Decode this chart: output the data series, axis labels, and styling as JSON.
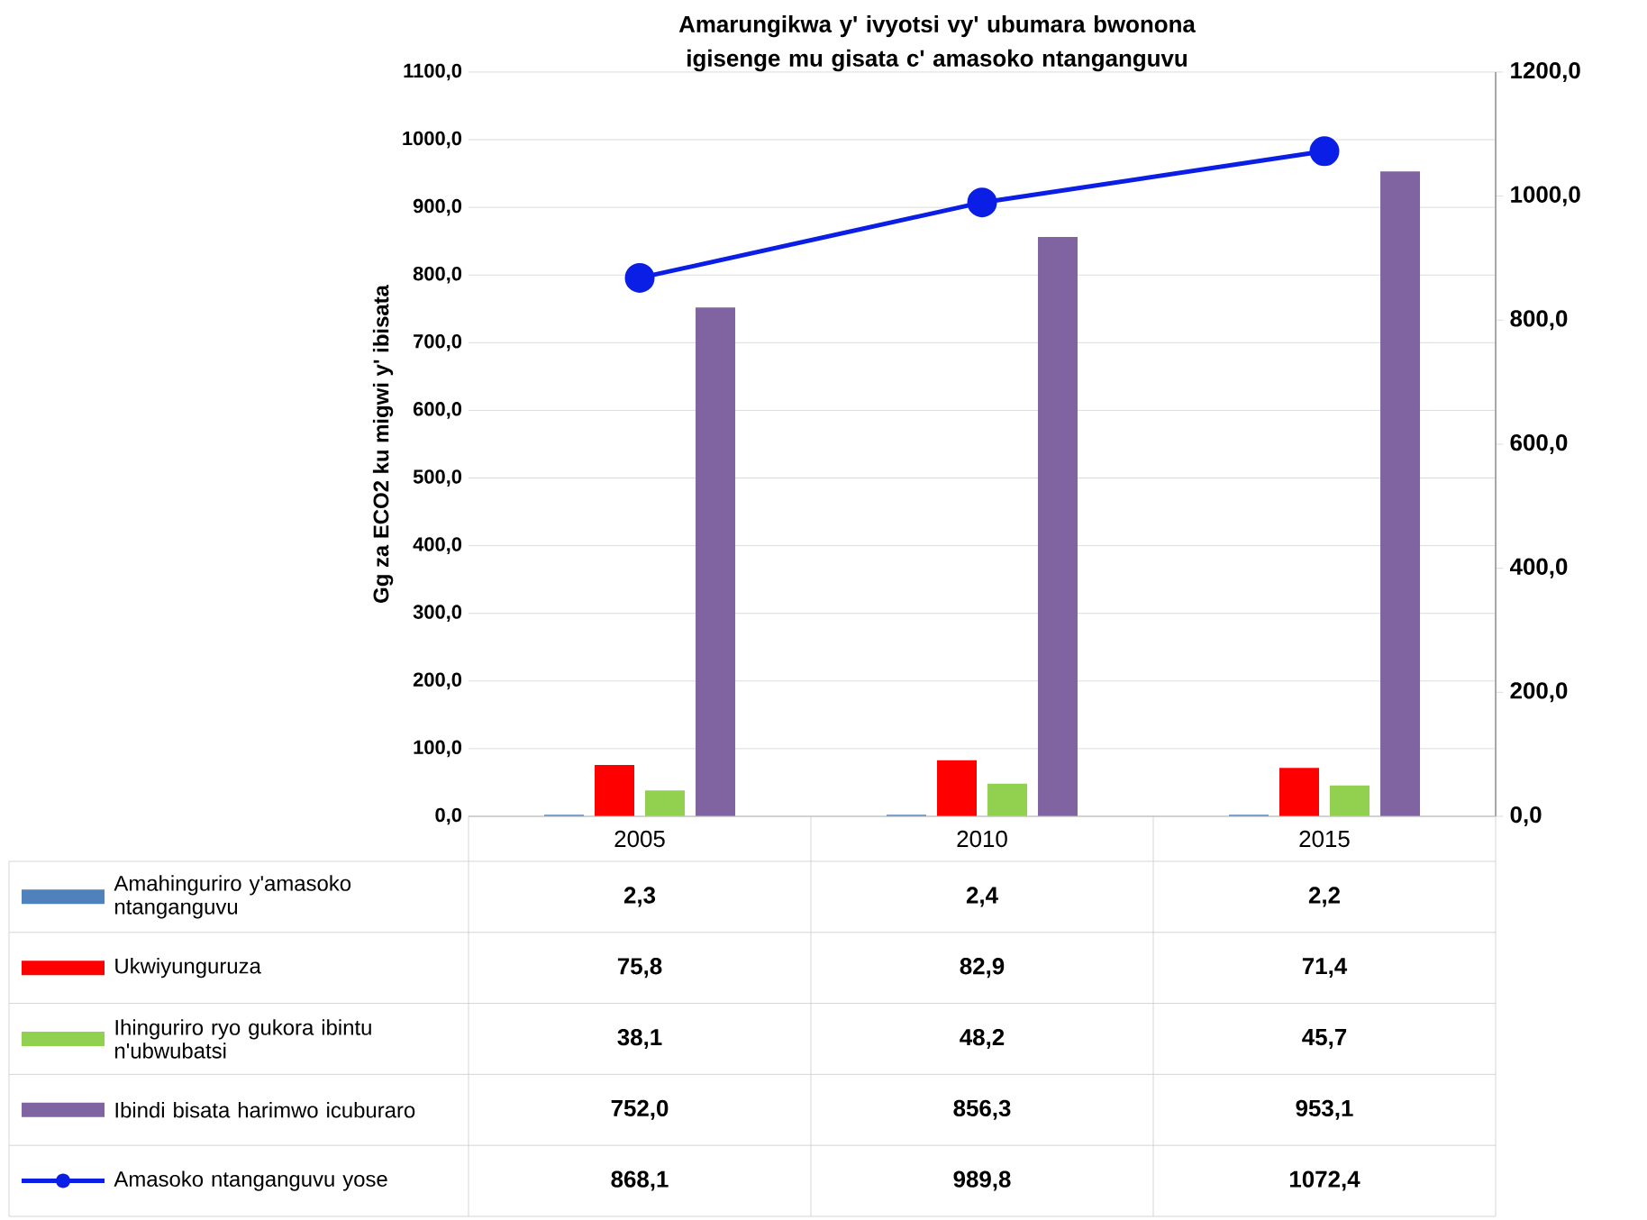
{
  "chart_data": {
    "type": "bar",
    "title": "Amarungikwa y' ivyotsi vy' ubumara bwonona igisenge mu gisata c' amasoko ntanganguvu",
    "ylabel": "Gg za ECO2  ku migwi y' ibisata",
    "categories": [
      "2005",
      "2010",
      "2015"
    ],
    "series": [
      {
        "name": "Amahinguriro y'amasoko ntanganguvu",
        "color": "#4f81bd",
        "values": [
          2.3,
          2.4,
          2.2
        ],
        "value_labels": [
          "2,3",
          "2,4",
          "2,2"
        ]
      },
      {
        "name": "Ukwiyunguruza",
        "color": "#ff0000",
        "values": [
          75.8,
          82.9,
          71.4
        ],
        "value_labels": [
          "75,8",
          "82,9",
          "71,4"
        ]
      },
      {
        "name": "Ihinguriro ryo gukora ibintu n'ubwubatsi",
        "color": "#92d050",
        "values": [
          38.1,
          48.2,
          45.7
        ],
        "value_labels": [
          "38,1",
          "48,2",
          "45,7"
        ]
      },
      {
        "name": "Ibindi bisata harimwo icuburaro",
        "color": "#8064a2",
        "values": [
          752.0,
          856.3,
          953.1
        ],
        "value_labels": [
          "752,0",
          "856,3",
          "953,1"
        ]
      },
      {
        "name": "Amasoko ntanganguvu yose",
        "color": "#0a1ee6",
        "type": "line",
        "axis": "y2",
        "marker": "circle",
        "values": [
          868.1,
          989.8,
          1072.4
        ],
        "value_labels": [
          "868,1",
          "989,8",
          "1072,4"
        ]
      }
    ],
    "ylim": [
      0,
      1100
    ],
    "yticks": [
      {
        "value": 0,
        "label": "0,0"
      },
      {
        "value": 100,
        "label": "100,0"
      },
      {
        "value": 200,
        "label": "200,0"
      },
      {
        "value": 300,
        "label": "300,0"
      },
      {
        "value": 400,
        "label": "400,0"
      },
      {
        "value": 500,
        "label": "500,0"
      },
      {
        "value": 600,
        "label": "600,0"
      },
      {
        "value": 700,
        "label": "700,0"
      },
      {
        "value": 800,
        "label": "800,0"
      },
      {
        "value": 900,
        "label": "900,0"
      },
      {
        "value": 1000,
        "label": "1000,0"
      },
      {
        "value": 1100,
        "label": "1100,0"
      }
    ],
    "y2lim": [
      0,
      1200
    ],
    "y2ticks": [
      {
        "value": 0,
        "label": "0,0"
      },
      {
        "value": 200,
        "label": "200,0"
      },
      {
        "value": 400,
        "label": "400,0"
      },
      {
        "value": 600,
        "label": "600,0"
      },
      {
        "value": 800,
        "label": "800,0"
      },
      {
        "value": 1000,
        "label": "1000,0"
      },
      {
        "value": 1200,
        "label": "1200,0"
      }
    ],
    "grid": "y",
    "legend": "bottom"
  }
}
